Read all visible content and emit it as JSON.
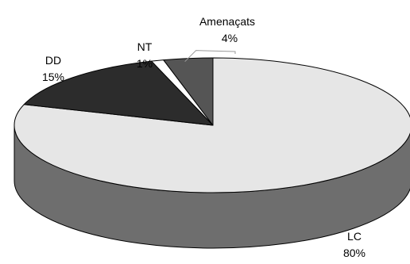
{
  "chart_data": {
    "type": "pie",
    "style": "3d",
    "title": "",
    "slices": [
      {
        "label": "LC",
        "value": 80,
        "value_label": "80%",
        "color": "#e6e6e6",
        "side_color": "#6e6e6e"
      },
      {
        "label": "DD",
        "value": 15,
        "value_label": "15%",
        "color": "#2c2c2c",
        "side_color": "#1a1a1a"
      },
      {
        "label": "NT",
        "value": 1,
        "value_label": "1%",
        "color": "#ffffff",
        "side_color": "#bdbdbd"
      },
      {
        "label": "Amenaçats",
        "value": 4,
        "value_label": "4%",
        "color": "#555555",
        "side_color": "#3a3a3a"
      }
    ],
    "legend": "none"
  }
}
